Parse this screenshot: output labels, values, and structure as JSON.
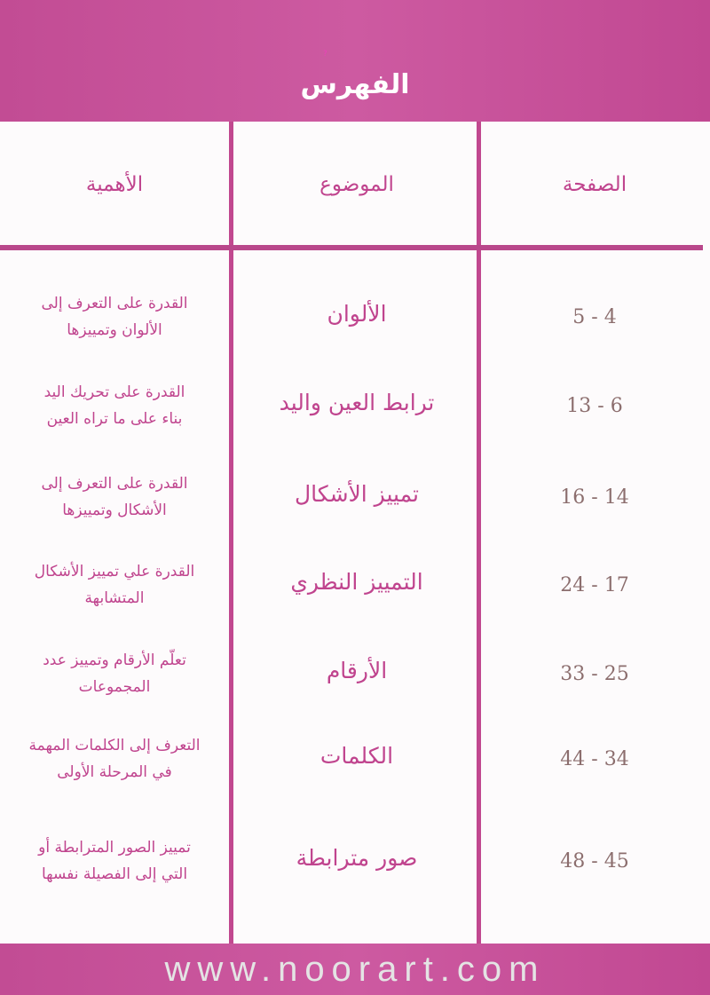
{
  "title": "الفهرس",
  "headers": {
    "importance": "الأهمية",
    "subject": "الموضوع",
    "page": "الصفحة"
  },
  "rows": [
    {
      "importance": [
        "القدرة على التعرف إلى",
        "الألوان وتمييزها"
      ],
      "subject": "الألوان",
      "pages": "5 - 4"
    },
    {
      "importance": [
        "القدرة على تحريك اليد",
        "بناء على ما تراه العين"
      ],
      "subject": "ترابط العين واليد",
      "pages": "13 - 6"
    },
    {
      "importance": [
        "القدرة على التعرف إلى",
        "الأشكال وتمييزها"
      ],
      "subject": "تمييز الأشكال",
      "pages": "16 - 14"
    },
    {
      "importance": [
        "القدرة علي تمييز الأشكال",
        "المتشابهة"
      ],
      "subject": "التمييز النظري",
      "pages": "24 - 17"
    },
    {
      "importance": [
        "تعلّم الأرقام وتمييز عدد",
        "المجموعات"
      ],
      "subject": "الأرقام",
      "pages": "33 - 25"
    },
    {
      "importance": [
        "التعرف إلى الكلمات المهمة",
        "في المرحلة الأولى"
      ],
      "subject": "الكلمات",
      "pages": "44 - 34"
    },
    {
      "importance": [
        "تمييز الصور المترابطة أو",
        "التي إلى الفصيلة نفسها"
      ],
      "subject": "صور مترابطة",
      "pages": "48 - 45"
    }
  ],
  "watermark": "www.noorart.com",
  "colors": {
    "band": "#c94f98",
    "text": "#c0448e",
    "numbers": "#8c6e6e"
  }
}
